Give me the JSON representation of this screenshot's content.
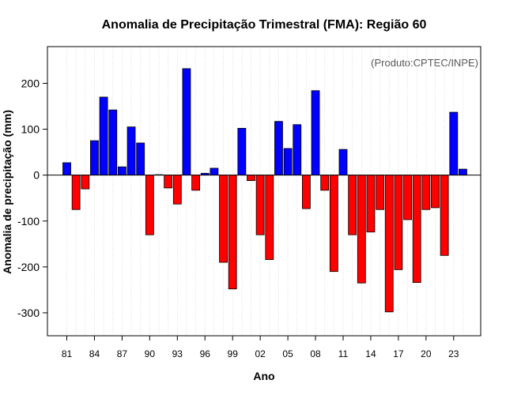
{
  "chart_data": {
    "type": "bar",
    "title": "Anomalia de Precipitação Trimestral (FMA): Região 60",
    "xlabel": "Ano",
    "ylabel": "Anomalia de precipitação (mm)",
    "credit": "(Produto:CPTEC/INPE)",
    "ylim": [
      -350,
      280
    ],
    "yticks": [
      -300,
      -200,
      -100,
      0,
      100,
      200
    ],
    "xtick_labels": [
      "81",
      "84",
      "87",
      "90",
      "93",
      "96",
      "99",
      "02",
      "05",
      "08",
      "11",
      "14",
      "17",
      "20",
      "23"
    ],
    "xtick_years": [
      1981,
      1984,
      1987,
      1990,
      1993,
      1996,
      1999,
      2002,
      2005,
      2008,
      2011,
      2014,
      2017,
      2020,
      2023
    ],
    "years": [
      1981,
      1982,
      1983,
      1984,
      1985,
      1986,
      1987,
      1988,
      1989,
      1990,
      1991,
      1992,
      1993,
      1994,
      1995,
      1996,
      1997,
      1998,
      1999,
      2000,
      2001,
      2002,
      2003,
      2004,
      2005,
      2006,
      2007,
      2008,
      2009,
      2010,
      2011,
      2012,
      2013,
      2014,
      2015,
      2016,
      2017,
      2018,
      2019,
      2020,
      2021,
      2022,
      2023,
      2024
    ],
    "values": [
      27,
      -75,
      -30,
      75,
      170,
      142,
      18,
      105,
      70,
      -130,
      1,
      -28,
      -63,
      232,
      -33,
      4,
      15,
      -190,
      -248,
      102,
      -12,
      -130,
      -184,
      117,
      58,
      110,
      -73,
      184,
      -33,
      -210,
      56,
      -130,
      -235,
      -124,
      -75,
      -298,
      -206,
      -97,
      -234,
      -75,
      -71,
      -175,
      137,
      13
    ],
    "colors": {
      "positive": "#0000ff",
      "negative": "#ff0000",
      "grid": "#d3d3d3",
      "frame": "#000000"
    }
  }
}
